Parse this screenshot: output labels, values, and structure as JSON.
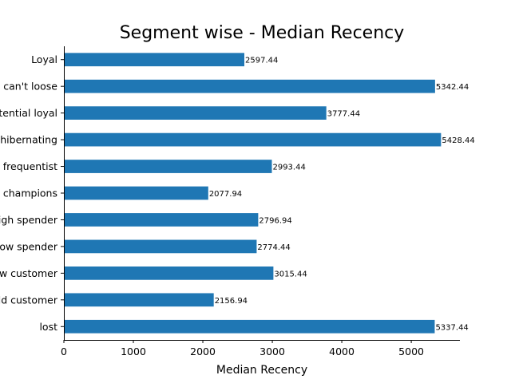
{
  "chart_data": {
    "type": "bar",
    "orientation": "horizontal",
    "title": "Segment wise - Median Recency",
    "xlabel": "Median Recency",
    "ylabel": "",
    "xlim": [
      0,
      5700
    ],
    "xticks": [
      0,
      1000,
      2000,
      3000,
      4000,
      5000
    ],
    "grid": false,
    "bar_color": "#1f77b4",
    "categories": [
      "Loyal",
      "can't loose",
      "potential loyal",
      "hibernating",
      "frequentist",
      "champions",
      "high spender",
      "low spender",
      "new customer",
      "old customer",
      "lost"
    ],
    "values": [
      2597.44,
      5342.44,
      3777.44,
      5428.44,
      2993.44,
      2077.94,
      2796.94,
      2774.44,
      3015.44,
      2156.94,
      5337.44
    ],
    "data_labels": [
      "2597.44",
      "5342.44",
      "3777.44",
      "5428.44",
      "2993.44",
      "2077.94",
      "2796.94",
      "2774.44",
      "3015.44",
      "2156.94",
      "5337.44"
    ]
  }
}
